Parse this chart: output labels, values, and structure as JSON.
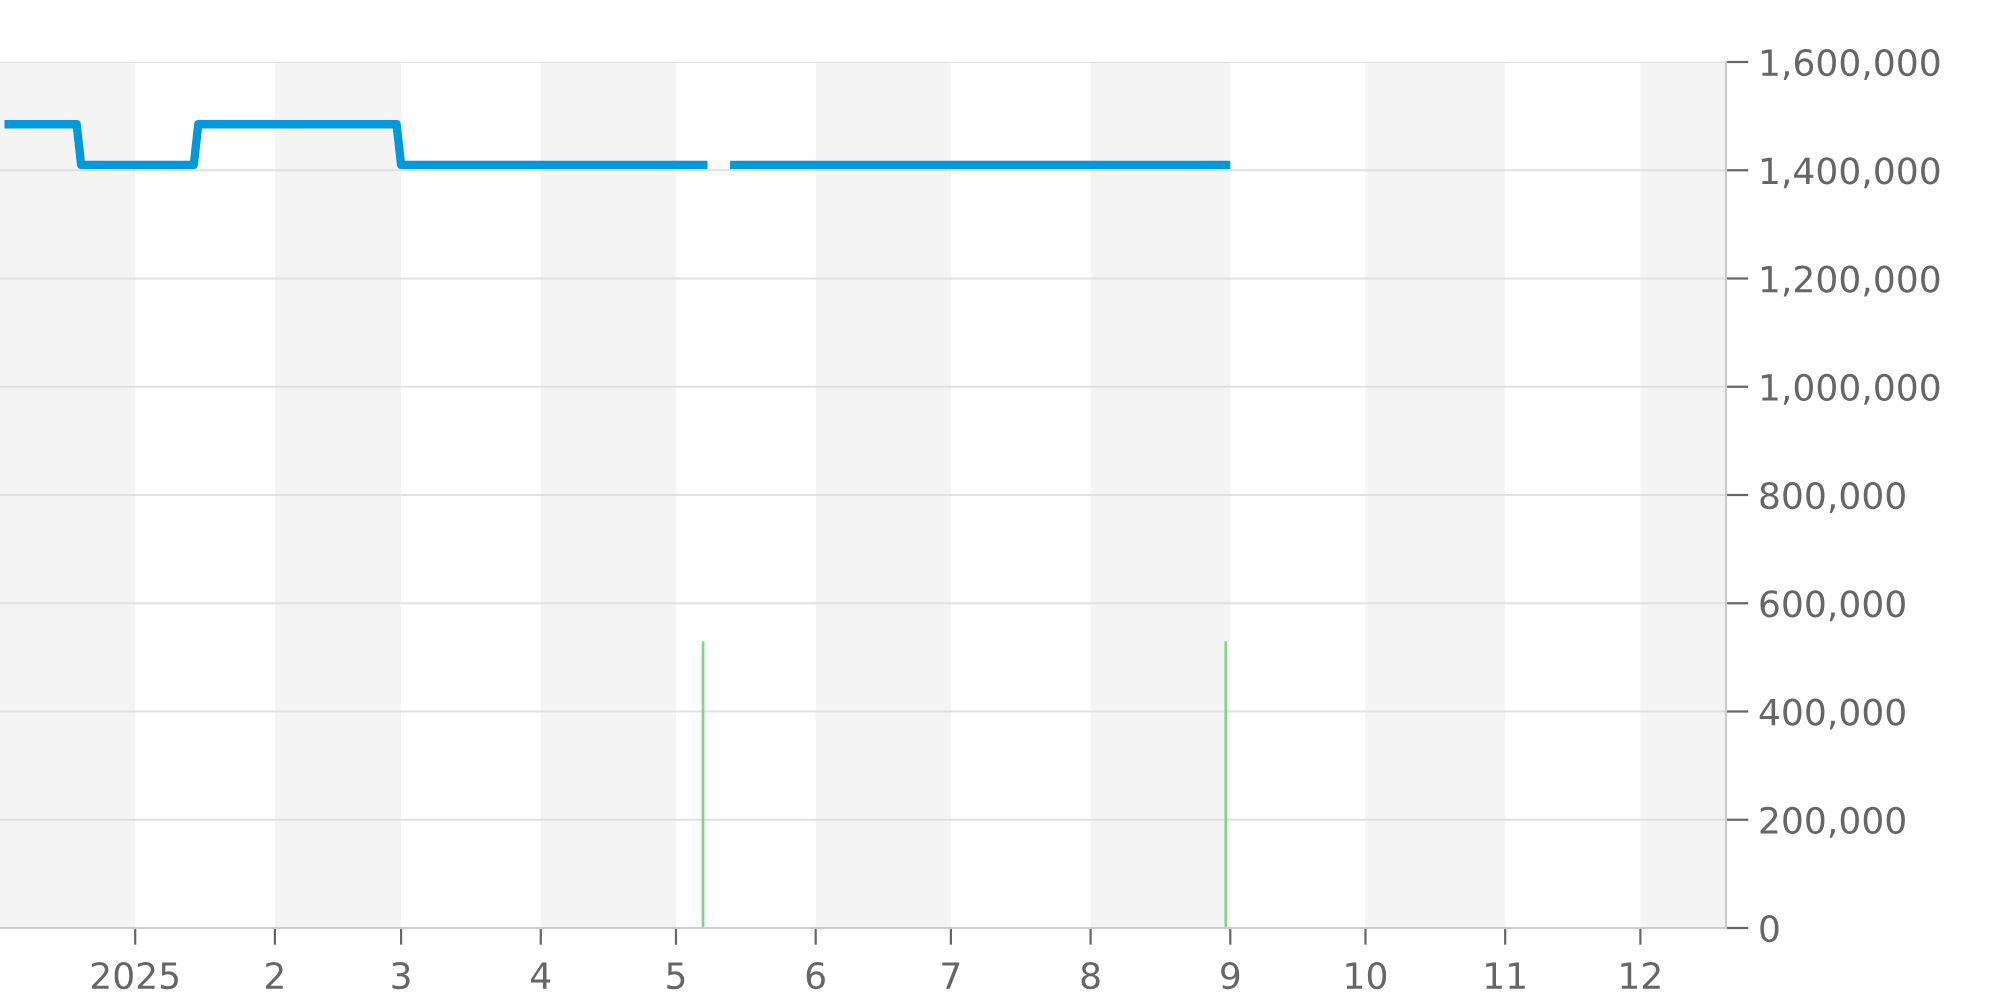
{
  "chart_data": {
    "type": "line",
    "xlim": [
      "2024-12-02",
      "2025-12-20"
    ],
    "xticks": [
      {
        "value": "2025-01-01",
        "label": "2025"
      },
      {
        "value": "2025-02-01",
        "label": "2"
      },
      {
        "value": "2025-03-01",
        "label": "3"
      },
      {
        "value": "2025-04-01",
        "label": "4"
      },
      {
        "value": "2025-05-01",
        "label": "5"
      },
      {
        "value": "2025-06-01",
        "label": "6"
      },
      {
        "value": "2025-07-01",
        "label": "7"
      },
      {
        "value": "2025-08-01",
        "label": "8"
      },
      {
        "value": "2025-09-01",
        "label": "9"
      },
      {
        "value": "2025-10-01",
        "label": "10"
      },
      {
        "value": "2025-11-01",
        "label": "11"
      },
      {
        "value": "2025-12-01",
        "label": "12"
      }
    ],
    "ylim": [
      0,
      1600000
    ],
    "yticks": [
      {
        "value": 0,
        "label": "0"
      },
      {
        "value": 200000,
        "label": "200,000"
      },
      {
        "value": 400000,
        "label": "400,000"
      },
      {
        "value": 600000,
        "label": "600,000"
      },
      {
        "value": 800000,
        "label": "800,000"
      },
      {
        "value": 1000000,
        "label": "1,000,000"
      },
      {
        "value": 1200000,
        "label": "1,200,000"
      },
      {
        "value": 1400000,
        "label": "1,400,000"
      },
      {
        "value": 1600000,
        "label": "1,600,000"
      }
    ],
    "grid": "y",
    "bands": [
      {
        "axis": "x",
        "from": "2024-12-02",
        "to": "2025-01-01",
        "color": "#f4f4f4"
      },
      {
        "axis": "x",
        "from": "2025-02-01",
        "to": "2025-03-01",
        "color": "#f4f4f4"
      },
      {
        "axis": "x",
        "from": "2025-04-01",
        "to": "2025-05-01",
        "color": "#f4f4f4"
      },
      {
        "axis": "x",
        "from": "2025-06-01",
        "to": "2025-07-01",
        "color": "#f4f4f4"
      },
      {
        "axis": "x",
        "from": "2025-08-01",
        "to": "2025-09-01",
        "color": "#f4f4f4"
      },
      {
        "axis": "x",
        "from": "2025-10-01",
        "to": "2025-11-01",
        "color": "#f4f4f4"
      },
      {
        "axis": "x",
        "from": "2025-12-01",
        "to": "2025-12-20",
        "color": "#f4f4f4"
      }
    ],
    "series": [
      {
        "color": "#0099dd",
        "x": [
          "2024-12-03",
          "2024-12-19",
          "2024-12-20",
          "2025-01-14",
          "2025-01-15",
          "2025-02-28",
          "2025-03-01",
          "2025-05-08",
          "2025-05-10",
          "2025-05-13",
          "2025-09-01"
        ],
        "values": [
          1485000,
          1485000,
          1410000,
          1410000,
          1485000,
          1485000,
          1410000,
          1410000,
          null,
          1410000,
          1410000
        ]
      },
      {
        "type": "bar",
        "color": "#88d08f",
        "x": [
          "2025-05-07",
          "2025-08-31"
        ],
        "values": [
          530000,
          530000
        ]
      }
    ]
  }
}
